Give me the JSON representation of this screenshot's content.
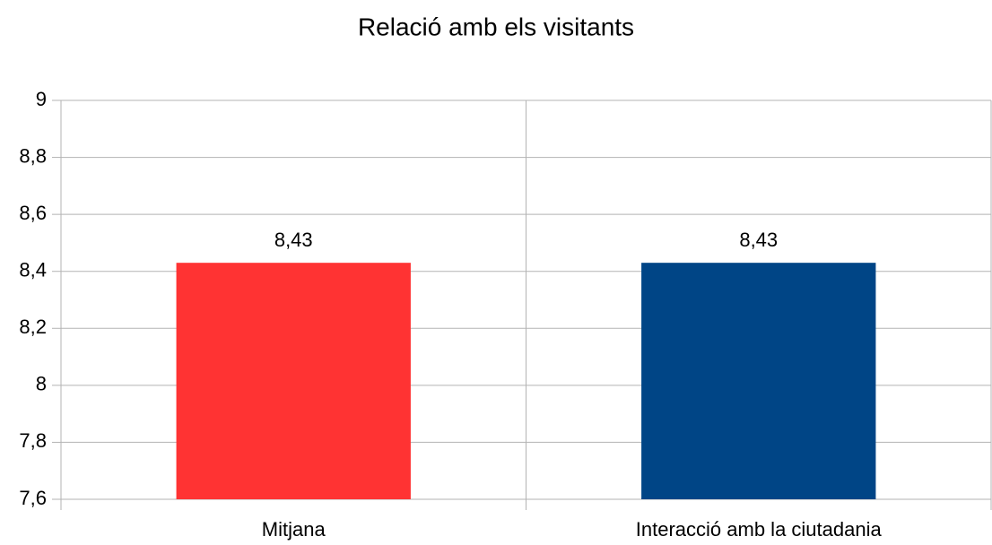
{
  "chart_data": {
    "type": "bar",
    "title": "Relació amb els visitants",
    "categories": [
      "Mitjana",
      "Interacció amb la ciutadania"
    ],
    "values": [
      8.43,
      8.43
    ],
    "value_labels": [
      "8,43",
      "8,43"
    ],
    "colors": [
      "#ff3333",
      "#004586"
    ],
    "ylim": [
      7.6,
      9
    ],
    "yticks": [
      {
        "value": 7.6,
        "label": "7,6"
      },
      {
        "value": 7.8,
        "label": "7,8"
      },
      8,
      {
        "value": 8.2,
        "label": "8,2"
      },
      {
        "value": 8.4,
        "label": "8,4"
      },
      {
        "value": 8.6,
        "label": "8,6"
      },
      {
        "value": 8.8,
        "label": "8,8"
      },
      9
    ],
    "grid": true
  }
}
